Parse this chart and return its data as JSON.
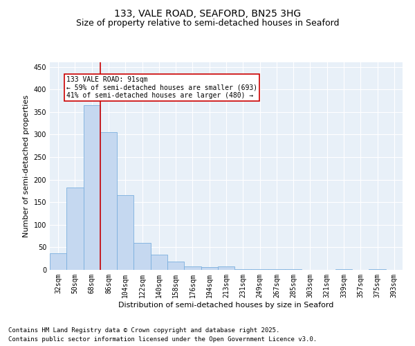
{
  "title1": "133, VALE ROAD, SEAFORD, BN25 3HG",
  "title2": "Size of property relative to semi-detached houses in Seaford",
  "xlabel": "Distribution of semi-detached houses by size in Seaford",
  "ylabel": "Number of semi-detached properties",
  "categories": [
    "32sqm",
    "50sqm",
    "68sqm",
    "86sqm",
    "104sqm",
    "122sqm",
    "140sqm",
    "158sqm",
    "176sqm",
    "194sqm",
    "213sqm",
    "231sqm",
    "249sqm",
    "267sqm",
    "285sqm",
    "303sqm",
    "321sqm",
    "339sqm",
    "357sqm",
    "375sqm",
    "393sqm"
  ],
  "values": [
    37,
    183,
    365,
    305,
    165,
    60,
    33,
    18,
    8,
    6,
    8,
    2,
    1,
    1,
    1,
    0,
    0,
    2,
    0,
    2,
    0
  ],
  "bar_color": "#c5d8f0",
  "bar_edge_color": "#7aafde",
  "vline_color": "#cc0000",
  "annotation_text": "133 VALE ROAD: 91sqm\n← 59% of semi-detached houses are smaller (693)\n41% of semi-detached houses are larger (480) →",
  "annotation_box_color": "#ffffff",
  "annotation_box_edge_color": "#cc0000",
  "ylim": [
    0,
    460
  ],
  "yticks": [
    0,
    50,
    100,
    150,
    200,
    250,
    300,
    350,
    400,
    450
  ],
  "background_color": "#e8f0f8",
  "footer1": "Contains HM Land Registry data © Crown copyright and database right 2025.",
  "footer2": "Contains public sector information licensed under the Open Government Licence v3.0.",
  "title_fontsize": 10,
  "subtitle_fontsize": 9,
  "tick_fontsize": 7,
  "label_fontsize": 8,
  "footer_fontsize": 6.5,
  "vline_x": 2.5
}
